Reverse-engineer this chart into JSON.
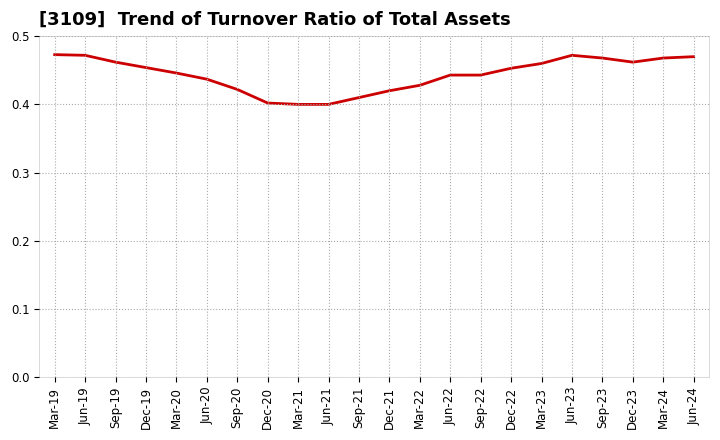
{
  "title": "[3109]  Trend of Turnover Ratio of Total Assets",
  "x_labels": [
    "Mar-19",
    "Jun-19",
    "Sep-19",
    "Dec-19",
    "Mar-20",
    "Jun-20",
    "Sep-20",
    "Dec-20",
    "Mar-21",
    "Jun-21",
    "Sep-21",
    "Dec-21",
    "Mar-22",
    "Jun-22",
    "Sep-22",
    "Dec-22",
    "Mar-23",
    "Jun-23",
    "Sep-23",
    "Dec-23",
    "Mar-24",
    "Jun-24"
  ],
  "values": [
    0.473,
    0.472,
    0.462,
    0.454,
    0.446,
    0.437,
    0.422,
    0.402,
    0.4,
    0.4,
    0.41,
    0.42,
    0.428,
    0.443,
    0.443,
    0.453,
    0.46,
    0.472,
    0.468,
    0.462,
    0.468,
    0.47
  ],
  "line_color": "#cc0000",
  "line_width": 2.0,
  "ylim": [
    0.0,
    0.5
  ],
  "yticks": [
    0.0,
    0.1,
    0.2,
    0.3,
    0.4,
    0.5
  ],
  "grid_color": "#aaaaaa",
  "grid_style": "dotted",
  "background_color": "#ffffff",
  "title_fontsize": 13,
  "tick_fontsize": 8.5,
  "title_fontweight": "bold"
}
